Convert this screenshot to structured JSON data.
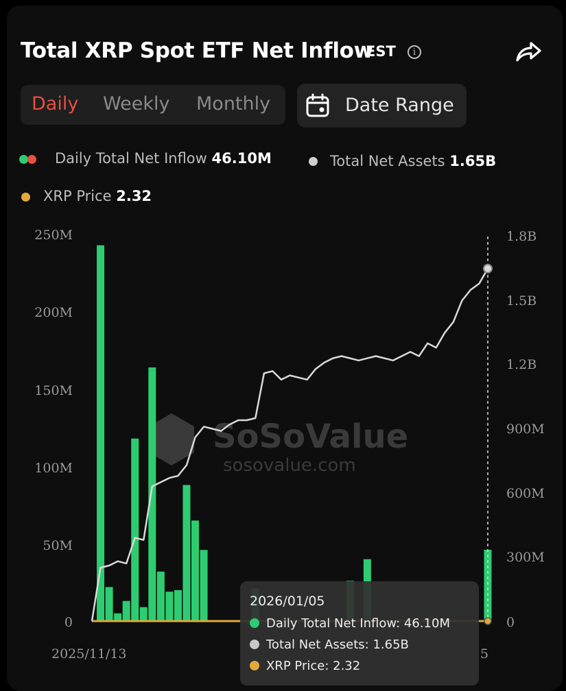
{
  "header": {
    "title": "Total XRP Spot ETF Net Inflow",
    "timezone": "EST"
  },
  "tabs": [
    {
      "label": "Daily",
      "active": true
    },
    {
      "label": "Weekly",
      "active": false
    },
    {
      "label": "Monthly",
      "active": false
    }
  ],
  "date_range_label": "Date Range",
  "legend": {
    "inflow_label": "Daily Total Net Inflow",
    "inflow_value": "46.10M",
    "assets_label": "Total Net Assets",
    "assets_value": "1.65B",
    "price_label": "XRP Price",
    "price_value": "2.32"
  },
  "watermark": {
    "brand": "SoSoValue",
    "site": "sosovalue.com"
  },
  "tooltip": {
    "date": "2026/01/05",
    "inflow": "Daily Total Net Inflow:  46.10M",
    "assets": "Total Net Assets:  1.65B",
    "price": "XRP Price:  2.32"
  },
  "colors": {
    "inflow": "#2ecc71",
    "assets": "#d9d9d9",
    "price": "#e2a93b",
    "active_tab": "#e8503f"
  },
  "chart_data": {
    "type": "bar",
    "x_start_label": "2025/11/13",
    "x_end_label_partial": "5",
    "left_axis": {
      "ticks": [
        "250M",
        "200M",
        "150M",
        "100M",
        "50M",
        "0"
      ],
      "ylim": [
        0,
        250
      ]
    },
    "right_axis": {
      "ticks": [
        "1.8B",
        "1.5B",
        "1.2B",
        "900M",
        "600M",
        "300M",
        "0"
      ],
      "ylim": [
        0,
        1.8
      ]
    },
    "series": [
      {
        "name": "Daily Total Net Inflow",
        "unit": "M",
        "values": [
          0,
          243,
          22,
          5,
          13,
          118,
          9,
          164,
          32,
          19,
          20,
          88,
          65,
          46,
          0,
          0,
          0,
          0,
          0,
          21,
          0,
          0,
          0,
          0,
          0,
          0,
          0,
          0,
          0,
          0,
          26,
          0,
          40,
          0,
          0,
          0,
          0,
          0,
          0,
          0,
          0,
          0,
          0,
          0,
          0,
          0.1,
          46.1
        ]
      },
      {
        "name": "Total Net Assets",
        "unit": "B",
        "values": [
          0,
          0.25,
          0.26,
          0.28,
          0.27,
          0.39,
          0.38,
          0.63,
          0.65,
          0.67,
          0.68,
          0.73,
          0.86,
          0.91,
          0.9,
          0.89,
          0.92,
          0.94,
          0.94,
          0.95,
          1.16,
          1.17,
          1.13,
          1.15,
          1.14,
          1.13,
          1.18,
          1.21,
          1.23,
          1.24,
          1.23,
          1.22,
          1.23,
          1.24,
          1.23,
          1.22,
          1.24,
          1.26,
          1.24,
          1.3,
          1.28,
          1.35,
          1.4,
          1.5,
          1.55,
          1.58,
          1.65
        ]
      },
      {
        "name": "XRP Price",
        "values": [
          2.32
        ]
      }
    ]
  }
}
